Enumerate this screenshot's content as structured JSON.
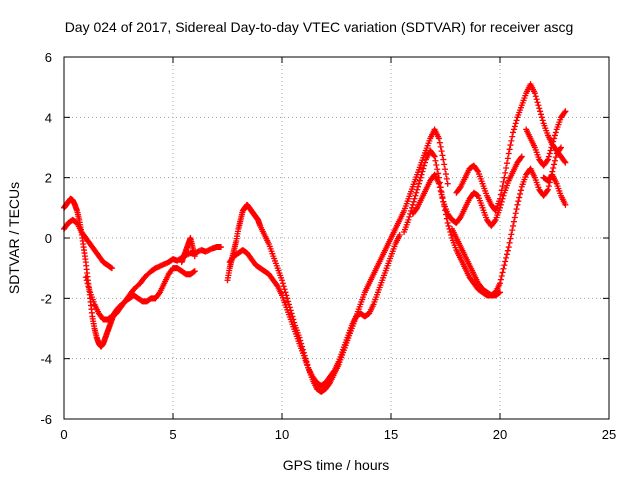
{
  "chart_data": {
    "type": "scatter",
    "title": "Day 024 of 2017, Sidereal Day-to-day VTEC variation (SDTVAR) for receiver ascg",
    "xlabel": "GPS time / hours",
    "ylabel": "SDTVAR / TECUs",
    "xlim": [
      0,
      25
    ],
    "ylim": [
      -6,
      6
    ],
    "xticks": [
      0,
      5,
      10,
      15,
      20,
      25
    ],
    "yticks": [
      -6,
      -4,
      -2,
      0,
      2,
      4,
      6
    ],
    "xtick_labels": [
      "0",
      "5",
      "10",
      "15",
      "20",
      "25"
    ],
    "ytick_labels": [
      "-6",
      "-4",
      "-2",
      "0",
      "2",
      "4",
      "6"
    ],
    "grid": true,
    "marker": "+",
    "color": "#ff0000",
    "series": [
      {
        "x": [
          0.0,
          0.1,
          0.2,
          0.3,
          0.4,
          0.5,
          0.6,
          0.7,
          0.8,
          0.9,
          1.0,
          1.1,
          1.2,
          1.3,
          1.4,
          1.5,
          1.6,
          1.7,
          1.8,
          1.9,
          2.0,
          2.1,
          2.2,
          2.3,
          2.5,
          2.8,
          3.0,
          3.2,
          3.5,
          3.7,
          4.0,
          4.2,
          4.5,
          4.8,
          5.0,
          5.2,
          5.5,
          5.8,
          6.0,
          6.3,
          6.5,
          6.8,
          7.0,
          7.2
        ],
        "y": [
          1.0,
          1.1,
          1.2,
          1.3,
          1.25,
          1.1,
          0.9,
          0.6,
          0.2,
          -0.3,
          -0.8,
          -1.4,
          -2.0,
          -2.6,
          -3.0,
          -3.3,
          -3.5,
          -3.6,
          -3.5,
          -3.3,
          -3.1,
          -2.9,
          -2.7,
          -2.5,
          -2.3,
          -2.1,
          -1.9,
          -1.7,
          -1.5,
          -1.3,
          -1.1,
          -1.0,
          -0.9,
          -0.8,
          -0.7,
          -0.75,
          -0.6,
          -0.5,
          -0.5,
          -0.4,
          -0.45,
          -0.35,
          -0.3,
          -0.3
        ]
      },
      {
        "x": [
          0.0,
          0.2,
          0.4,
          0.6,
          0.8,
          1.0,
          1.2,
          1.4,
          1.6,
          1.8,
          2.0,
          2.2
        ],
        "y": [
          0.3,
          0.5,
          0.6,
          0.5,
          0.2,
          0.0,
          -0.2,
          -0.4,
          -0.6,
          -0.8,
          -0.9,
          -1.0
        ]
      },
      {
        "x": [
          1.0,
          1.2,
          1.4,
          1.6,
          1.8,
          2.0,
          2.2,
          2.4,
          2.6,
          2.8,
          3.0,
          3.2,
          3.4,
          3.6,
          3.8,
          4.0,
          4.2,
          4.4,
          4.6,
          4.8,
          5.0,
          5.2,
          5.4,
          5.6,
          5.8,
          6.0
        ],
        "y": [
          -1.3,
          -1.8,
          -2.2,
          -2.5,
          -2.7,
          -2.7,
          -2.6,
          -2.5,
          -2.3,
          -2.1,
          -2.0,
          -1.9,
          -2.0,
          -2.1,
          -2.1,
          -2.0,
          -2.0,
          -1.8,
          -1.5,
          -1.2,
          -1.0,
          -1.0,
          -1.1,
          -1.2,
          -1.2,
          -1.1
        ]
      },
      {
        "x": [
          5.4,
          5.5,
          5.6,
          5.7,
          5.8,
          5.9,
          6.0
        ],
        "y": [
          -0.8,
          -0.6,
          -0.4,
          -0.2,
          0.0,
          -0.3,
          -0.6
        ]
      },
      {
        "x": [
          7.5,
          7.6,
          7.7,
          7.8,
          7.9,
          8.0,
          8.1,
          8.2,
          8.3,
          8.4,
          8.5,
          8.6,
          8.7,
          8.8,
          8.9,
          9.0,
          9.2,
          9.4,
          9.6,
          9.8,
          10.0,
          10.2,
          10.4,
          10.6,
          10.8,
          11.0,
          11.2,
          11.4,
          11.6,
          11.8,
          12.0,
          12.2,
          12.4,
          12.6,
          12.8,
          13.0,
          13.2,
          13.4,
          13.6,
          13.8,
          14.0,
          14.2,
          14.4,
          14.6,
          14.8,
          15.0,
          15.2,
          15.4,
          15.6,
          15.8,
          16.0,
          16.2,
          16.4,
          16.6,
          16.8,
          17.0,
          17.2,
          17.4,
          17.6
        ],
        "y": [
          -1.4,
          -1.0,
          -0.7,
          -0.4,
          -0.1,
          0.3,
          0.6,
          0.9,
          1.0,
          1.1,
          1.0,
          0.9,
          0.8,
          0.7,
          0.6,
          0.4,
          0.1,
          -0.2,
          -0.6,
          -1.0,
          -1.4,
          -1.9,
          -2.4,
          -2.9,
          -3.3,
          -3.8,
          -4.3,
          -4.7,
          -5.0,
          -5.1,
          -5.0,
          -4.8,
          -4.5,
          -4.2,
          -3.8,
          -3.4,
          -3.0,
          -2.6,
          -2.2,
          -1.8,
          -1.5,
          -1.2,
          -0.9,
          -0.6,
          -0.3,
          0.0,
          0.3,
          0.6,
          0.9,
          1.3,
          1.7,
          2.1,
          2.5,
          2.9,
          3.3,
          3.6,
          3.3,
          2.6,
          1.8
        ]
      },
      {
        "x": [
          7.6,
          7.8,
          8.0,
          8.2,
          8.4,
          8.6,
          8.8,
          9.0,
          9.2,
          9.4,
          9.6,
          9.8,
          10.0,
          10.2,
          10.4,
          10.6,
          10.8,
          11.0,
          11.2,
          11.4,
          11.6,
          11.8,
          12.0,
          12.2,
          12.4,
          12.6,
          12.8,
          13.0,
          13.2,
          13.4,
          13.6,
          13.8,
          14.0,
          14.2,
          14.4,
          14.6,
          14.8,
          15.0,
          15.2,
          15.4
        ],
        "y": [
          -0.8,
          -0.6,
          -0.5,
          -0.4,
          -0.5,
          -0.7,
          -0.9,
          -1.0,
          -1.1,
          -1.2,
          -1.4,
          -1.6,
          -1.9,
          -2.3,
          -2.7,
          -3.1,
          -3.5,
          -3.9,
          -4.3,
          -4.6,
          -4.8,
          -4.9,
          -4.8,
          -4.6,
          -4.4,
          -4.1,
          -3.7,
          -3.3,
          -2.9,
          -2.6,
          -2.5,
          -2.6,
          -2.5,
          -2.2,
          -1.8,
          -1.4,
          -1.0,
          -0.6,
          -0.2,
          0.1
        ]
      },
      {
        "x": [
          15.6,
          15.8,
          16.0,
          16.2,
          16.4,
          16.6,
          16.8,
          17.0,
          17.2,
          17.4,
          17.6,
          17.8,
          18.0,
          18.2,
          18.4,
          18.6,
          18.8,
          19.0,
          19.2,
          19.4,
          19.6,
          19.8,
          20.0,
          20.2,
          20.4,
          20.6,
          20.8,
          21.0,
          21.2,
          21.4,
          21.6,
          21.8,
          22.0,
          22.2,
          22.4,
          22.6,
          22.8
        ],
        "y": [
          0.2,
          0.6,
          1.1,
          1.6,
          2.1,
          2.6,
          2.9,
          2.7,
          2.0,
          1.2,
          0.5,
          0.0,
          -0.4,
          -0.7,
          -1.0,
          -1.3,
          -1.5,
          -1.7,
          -1.8,
          -1.9,
          -1.9,
          -1.8,
          -1.5,
          -0.9,
          -0.3,
          0.4,
          1.1,
          1.7,
          2.1,
          2.3,
          2.0,
          1.6,
          1.4,
          1.6,
          2.2,
          2.8,
          3.0
        ]
      },
      {
        "x": [
          16.0,
          16.2,
          16.4,
          16.6,
          16.8,
          17.0,
          17.2,
          17.4,
          17.6,
          17.8,
          18.0,
          18.2,
          18.4,
          18.6,
          18.8,
          19.0,
          19.2,
          19.4,
          19.6,
          19.8,
          20.0,
          20.2,
          20.4,
          20.6,
          20.8,
          21.0
        ],
        "y": [
          0.8,
          1.0,
          1.3,
          1.6,
          1.9,
          2.1,
          1.8,
          1.2,
          0.8,
          0.6,
          0.5,
          0.7,
          1.0,
          1.3,
          1.5,
          1.4,
          1.0,
          0.6,
          0.4,
          0.6,
          1.0,
          1.5,
          1.9,
          2.2,
          2.5,
          2.7
        ]
      },
      {
        "x": [
          17.8,
          18.0,
          18.2,
          18.4,
          18.6,
          18.8,
          19.0,
          19.2,
          19.4,
          19.6,
          19.8,
          20.0
        ],
        "y": [
          0.3,
          0.0,
          -0.3,
          -0.6,
          -0.9,
          -1.2,
          -1.5,
          -1.7,
          -1.8,
          -1.9,
          -1.9,
          -1.8
        ]
      },
      {
        "x": [
          18.0,
          18.2,
          18.4,
          18.6,
          18.8,
          19.0,
          19.2,
          19.4,
          19.6,
          19.8,
          20.0,
          20.2,
          20.4,
          20.6,
          20.8,
          21.0,
          21.2,
          21.4,
          21.6,
          21.8,
          22.0,
          22.2,
          22.4,
          22.6,
          22.8,
          23.0
        ],
        "y": [
          1.5,
          1.7,
          2.0,
          2.3,
          2.4,
          2.2,
          1.8,
          1.4,
          1.1,
          0.9,
          1.3,
          2.0,
          2.8,
          3.5,
          4.0,
          4.4,
          4.8,
          5.1,
          4.8,
          4.3,
          3.8,
          3.4,
          3.1,
          2.9,
          2.7,
          2.5
        ]
      },
      {
        "x": [
          21.2,
          21.4,
          21.6,
          21.8,
          22.0,
          22.2,
          22.4,
          22.6,
          22.8,
          23.0
        ],
        "y": [
          3.6,
          3.3,
          3.0,
          2.6,
          2.4,
          2.6,
          3.1,
          3.6,
          4.0,
          4.2
        ]
      },
      {
        "x": [
          22.0,
          22.2,
          22.4,
          22.6,
          22.8,
          23.0
        ],
        "y": [
          2.0,
          1.9,
          2.1,
          1.8,
          1.4,
          1.1
        ]
      }
    ]
  }
}
